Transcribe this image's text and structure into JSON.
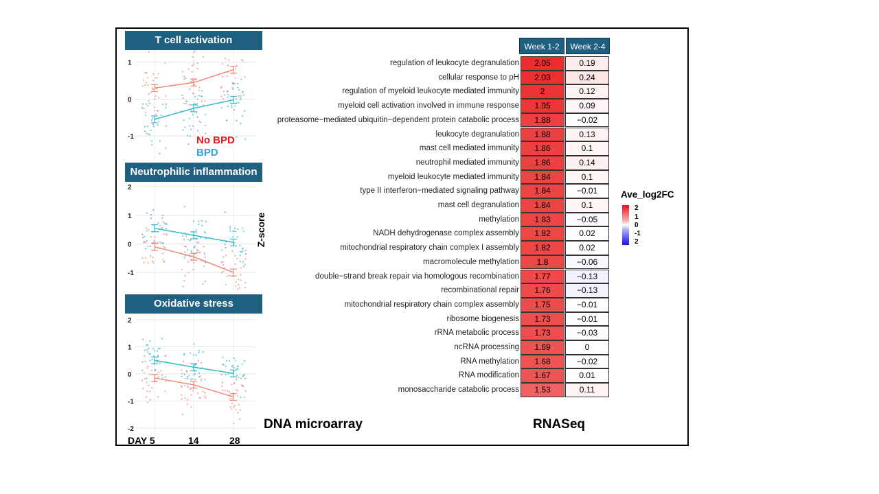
{
  "left_panels": [
    {
      "title": "T cell activation",
      "yticks": [
        "1",
        "0",
        "-1"
      ],
      "no_bpd": [
        0.3,
        0.45,
        0.8
      ],
      "bpd": [
        -0.55,
        -0.25,
        -0.02
      ]
    },
    {
      "title": "Neutrophilic inflammation",
      "yticks": [
        "2",
        "1",
        "0",
        "-1"
      ],
      "no_bpd": [
        -0.1,
        -0.45,
        -1.0
      ],
      "bpd": [
        0.55,
        0.3,
        0.05
      ]
    },
    {
      "title": "Oxidative stress",
      "yticks": [
        "2",
        "1",
        "0",
        "-1",
        "-2"
      ],
      "no_bpd": [
        -0.15,
        -0.4,
        -0.85
      ],
      "bpd": [
        0.5,
        0.25,
        0.02
      ]
    }
  ],
  "legend": {
    "no_bpd": "No BPD",
    "bpd": "BPD"
  },
  "colors": {
    "no_bpd": "#f08878",
    "bpd": "#35b9c8",
    "no_bpd_text": "#e8141a",
    "bpd_text": "#3a9fd6",
    "header": "#1f5f80"
  },
  "x_days": [
    "DAY 5",
    "14",
    "28"
  ],
  "ylabel": "Z-score",
  "label_microarray": "DNA microarray",
  "label_rnaseq": "RNASeq",
  "chart_data": {
    "type": "heatmap",
    "columns": [
      "Week 1-2",
      "Week 2-4"
    ],
    "legend_title": "Ave_log2FC",
    "legend_ticks": [
      "2",
      "1",
      "0",
      "-1",
      "2"
    ],
    "rows": [
      {
        "label": "regulation of leukocyte degranulation",
        "v1": "2.05",
        "v2": "0.19"
      },
      {
        "label": "cellular response to pH",
        "v1": "2.03",
        "v2": "0.24"
      },
      {
        "label": "regulation of myeloid leukocyte mediated immunity",
        "v1": "2",
        "v2": "0.12"
      },
      {
        "label": "myeloid cell activation involved in immune response",
        "v1": "1.95",
        "v2": "0.09"
      },
      {
        "label": "proteasome−mediated ubiquitin−dependent protein catabolic process",
        "v1": "1.88",
        "v2": "−0.02"
      },
      {
        "label": "leukocyte degranulation",
        "v1": "1.88",
        "v2": "0.13"
      },
      {
        "label": "mast cell mediated immunity",
        "v1": "1.86",
        "v2": "0.1"
      },
      {
        "label": "neutrophil mediated immunity",
        "v1": "1.86",
        "v2": "0.14"
      },
      {
        "label": "myeloid leukocyte mediated immunity",
        "v1": "1.84",
        "v2": "0.1"
      },
      {
        "label": "type II interferon−mediated signaling pathway",
        "v1": "1.84",
        "v2": "−0.01"
      },
      {
        "label": "mast cell degranulation",
        "v1": "1.84",
        "v2": "0.1"
      },
      {
        "label": "methylation",
        "v1": "1.83",
        "v2": "−0.05"
      },
      {
        "label": "NADH dehydrogenase complex assembly",
        "v1": "1.82",
        "v2": "0.02"
      },
      {
        "label": "mitochondrial respiratory chain complex I assembly",
        "v1": "1.82",
        "v2": "0.02"
      },
      {
        "label": "macromolecule methylation",
        "v1": "1.8",
        "v2": "−0.06"
      },
      {
        "label": "double−strand break repair via homologous recombination",
        "v1": "1.77",
        "v2": "−0.13"
      },
      {
        "label": "recombinational repair",
        "v1": "1.76",
        "v2": "−0.13"
      },
      {
        "label": "mitochondrial respiratory chain complex assembly",
        "v1": "1.75",
        "v2": "−0.01"
      },
      {
        "label": "ribosome biogenesis",
        "v1": "1.73",
        "v2": "−0.01"
      },
      {
        "label": "rRNA metabolic process",
        "v1": "1.73",
        "v2": "−0.03"
      },
      {
        "label": "ncRNA processing",
        "v1": "1.69",
        "v2": "0"
      },
      {
        "label": "RNA methylation",
        "v1": "1.68",
        "v2": "−0.02"
      },
      {
        "label": "RNA modification",
        "v1": "1.67",
        "v2": "0.01"
      },
      {
        "label": "monosaccharide catabolic process",
        "v1": "1.53",
        "v2": "0.11"
      }
    ]
  }
}
